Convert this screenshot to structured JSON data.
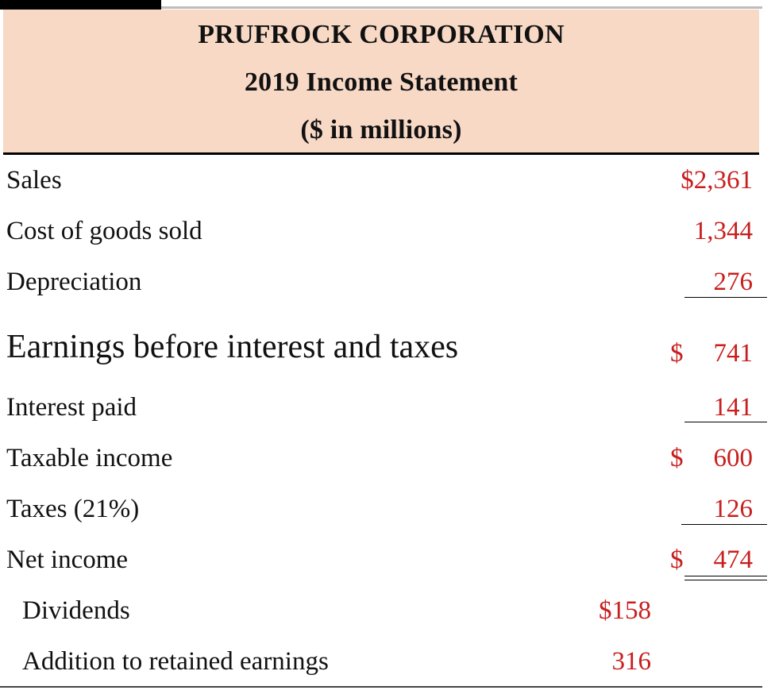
{
  "header": {
    "company": "PRUFROCK CORPORATION",
    "title": "2019 Income Statement",
    "units": "($ in millions)"
  },
  "rows": {
    "sales": {
      "label": "Sales",
      "value": "$2,361"
    },
    "cogs": {
      "label": "Cost of goods sold",
      "value": "1,344"
    },
    "depreciation": {
      "label": "Depreciation",
      "value": "276"
    },
    "ebit": {
      "label": "Earnings before interest and taxes",
      "currency": "$",
      "value": "741"
    },
    "interest": {
      "label": "Interest paid",
      "value": "141"
    },
    "taxable": {
      "label": "Taxable income",
      "currency": "$",
      "value": "600"
    },
    "taxes": {
      "label": "Taxes (21%)",
      "value": "126"
    },
    "net_income": {
      "label": "Net income",
      "currency": "$",
      "value": "474"
    },
    "dividends": {
      "label": "Dividends",
      "value": "$158"
    },
    "retained": {
      "label": "Addition to retained earnings",
      "value": "316"
    }
  },
  "colors": {
    "header_bg": "#f7d9c6",
    "value_text": "#c81e1e"
  }
}
